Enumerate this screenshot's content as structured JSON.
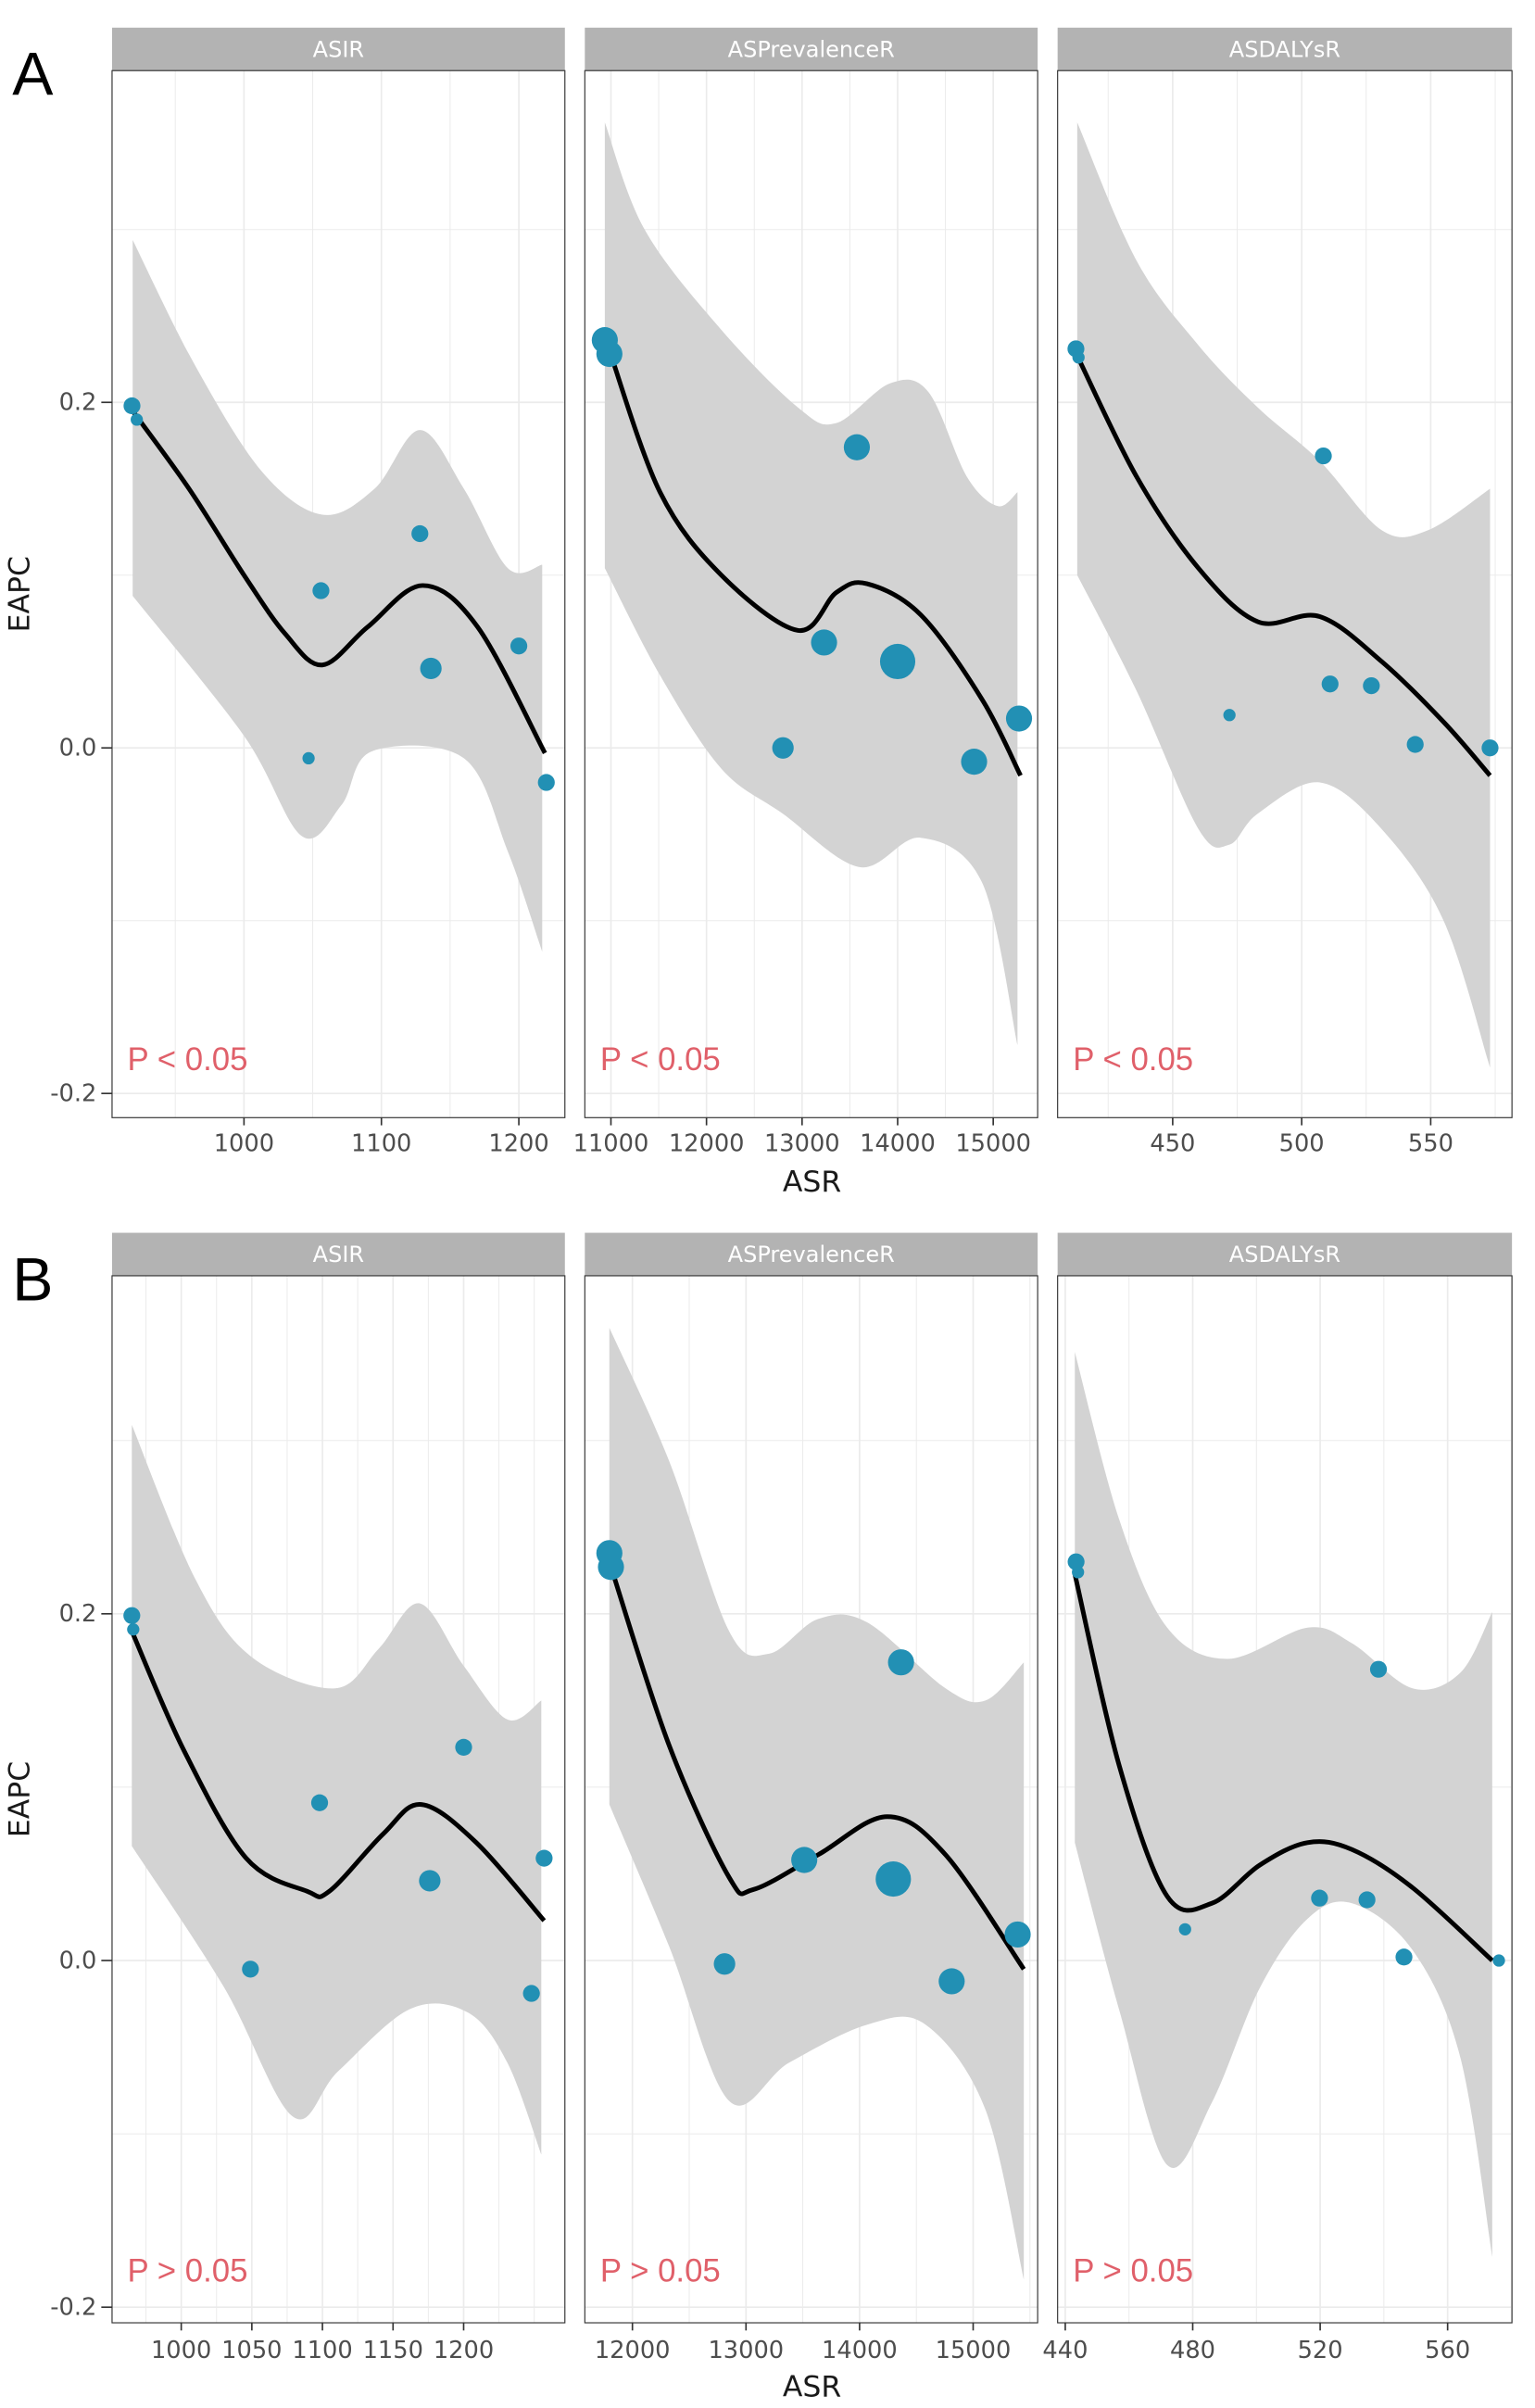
{
  "chart_data": [
    {
      "type": "scatter",
      "panel_label": "A",
      "xlabel": "ASR",
      "ylabel": "EAPC",
      "ylim": [
        -0.214,
        0.392
      ],
      "yticks": [
        {
          "v": 0.2,
          "label": "0.2"
        },
        {
          "v": 0.0,
          "label": "0.0"
        },
        {
          "v": -0.2,
          "label": "-0.2"
        }
      ],
      "grid": true,
      "facets": [
        {
          "strip": "ASIR",
          "p_label": "P < 0.05",
          "xlim": [
            904,
            1233.5
          ],
          "xticks": [
            {
              "v": 1000,
              "label": "1000"
            },
            {
              "v": 1100,
              "label": "1100"
            },
            {
              "v": 1200,
              "label": "1200"
            }
          ],
          "points": [
            [
              918.5,
              0.198,
              2
            ],
            [
              922,
              0.19,
              1
            ],
            [
              1056,
              0.091,
              2
            ],
            [
              1047,
              -0.006,
              1
            ],
            [
              1128,
              0.124,
              2
            ],
            [
              1136,
              0.046,
              3
            ],
            [
              1200,
              0.059,
              2
            ],
            [
              1220,
              -0.02,
              2
            ]
          ],
          "fit": [
            [
              919,
              0.195
            ],
            [
              960,
              0.15
            ],
            [
              1000,
              0.1
            ],
            [
              1030,
              0.066
            ],
            [
              1057,
              0.048
            ],
            [
              1090,
              0.07
            ],
            [
              1130,
              0.094
            ],
            [
              1170,
              0.07
            ],
            [
              1219,
              -0.003
            ]
          ],
          "upper": [
            [
              919,
              0.294
            ],
            [
              964,
              0.222
            ],
            [
              1013,
              0.16
            ],
            [
              1057,
              0.135
            ],
            [
              1095,
              0.15
            ],
            [
              1128,
              0.184
            ],
            [
              1160,
              0.15
            ],
            [
              1192,
              0.104
            ],
            [
              1217,
              0.106
            ]
          ],
          "lower": [
            [
              919,
              0.088
            ],
            [
              1000,
              0.007
            ],
            [
              1042,
              -0.051
            ],
            [
              1071,
              -0.033
            ],
            [
              1093,
              -0.002
            ],
            [
              1160,
              -0.006
            ],
            [
              1192,
              -0.06
            ],
            [
              1217,
              -0.118
            ]
          ]
        },
        {
          "strip": "ASPrevalenceR",
          "p_label": "P < 0.05",
          "xlim": [
            10727,
            15465
          ],
          "xticks": [
            {
              "v": 11000,
              "label": "11000"
            },
            {
              "v": 12000,
              "label": "12000"
            },
            {
              "v": 13000,
              "label": "13000"
            },
            {
              "v": 14000,
              "label": "14000"
            },
            {
              "v": 15000,
              "label": "15000"
            }
          ],
          "points": [
            [
              10936,
              0.236,
              4
            ],
            [
              10984,
              0.228,
              4
            ],
            [
              13573,
              0.174,
              4
            ],
            [
              13230,
              0.061,
              4
            ],
            [
              14000,
              0.05,
              6
            ],
            [
              12800,
              0.0,
              3
            ],
            [
              14800,
              -0.008,
              4
            ],
            [
              15270,
              0.017,
              4
            ]
          ],
          "fit": [
            [
              10984,
              0.23
            ],
            [
              11514,
              0.148
            ],
            [
              12155,
              0.1
            ],
            [
              12958,
              0.068
            ],
            [
              13359,
              0.09
            ],
            [
              13680,
              0.095
            ],
            [
              14242,
              0.077
            ],
            [
              14884,
              0.028
            ],
            [
              15286,
              -0.016
            ]
          ],
          "upper": [
            [
              10936,
              0.362
            ],
            [
              11353,
              0.3
            ],
            [
              12155,
              0.242
            ],
            [
              12958,
              0.197
            ],
            [
              13359,
              0.188
            ],
            [
              13921,
              0.211
            ],
            [
              14322,
              0.206
            ],
            [
              14724,
              0.157
            ],
            [
              15045,
              0.14
            ],
            [
              15254,
              0.148
            ]
          ],
          "lower": [
            [
              10936,
              0.104
            ],
            [
              11514,
              0.042
            ],
            [
              12155,
              -0.012
            ],
            [
              12797,
              -0.038
            ],
            [
              13600,
              -0.069
            ],
            [
              14242,
              -0.052
            ],
            [
              14884,
              -0.078
            ],
            [
              15254,
              -0.172
            ]
          ]
        },
        {
          "strip": "ASDALYsR",
          "p_label": "P < 0.05",
          "xlim": [
            405.4,
            581.5
          ],
          "xticks": [
            {
              "v": 450,
              "label": "450"
            },
            {
              "v": 500,
              "label": "500"
            },
            {
              "v": 550,
              "label": "550"
            }
          ],
          "points": [
            [
              412.5,
              0.231,
              2
            ],
            [
              413.5,
              0.226,
              1
            ],
            [
              508.4,
              0.169,
              2
            ],
            [
              472,
              0.019,
              1
            ],
            [
              511,
              0.037,
              2
            ],
            [
              527,
              0.036,
              2
            ],
            [
              544,
              0.002,
              2
            ],
            [
              573,
              0.0,
              2
            ]
          ],
          "fit": [
            [
              413,
              0.227
            ],
            [
              436,
              0.157
            ],
            [
              460,
              0.104
            ],
            [
              483,
              0.073
            ],
            [
              507,
              0.076
            ],
            [
              531,
              0.05
            ],
            [
              555,
              0.015
            ],
            [
              573,
              -0.016
            ]
          ],
          "upper": [
            [
              413,
              0.362
            ],
            [
              436,
              0.282
            ],
            [
              460,
              0.233
            ],
            [
              483,
              0.197
            ],
            [
              507,
              0.166
            ],
            [
              531,
              0.126
            ],
            [
              549,
              0.126
            ],
            [
              573,
              0.15
            ]
          ],
          "lower": [
            [
              413,
              0.1
            ],
            [
              436,
              0.033
            ],
            [
              460,
              -0.047
            ],
            [
              472,
              -0.056
            ],
            [
              483,
              -0.038
            ],
            [
              507,
              -0.02
            ],
            [
              531,
              -0.047
            ],
            [
              555,
              -0.1
            ],
            [
              573,
              -0.185
            ]
          ]
        }
      ]
    },
    {
      "type": "scatter",
      "panel_label": "B",
      "xlabel": "ASR",
      "ylabel": "EAPC",
      "ylim": [
        -0.209,
        0.395
      ],
      "yticks": [
        {
          "v": 0.2,
          "label": "0.2"
        },
        {
          "v": 0.0,
          "label": "0.0"
        },
        {
          "v": -0.2,
          "label": "-0.2"
        }
      ],
      "grid": true,
      "facets": [
        {
          "strip": "ASIR",
          "p_label": "P > 0.05",
          "xlim": [
            951,
            1271.7
          ],
          "xticks": [
            {
              "v": 1000,
              "label": "1000"
            },
            {
              "v": 1050,
              "label": "1050"
            },
            {
              "v": 1100,
              "label": "1100"
            },
            {
              "v": 1150,
              "label": "1150"
            },
            {
              "v": 1200,
              "label": "1200"
            }
          ],
          "points": [
            [
              965,
              0.199,
              2
            ],
            [
              966,
              0.191,
              1
            ],
            [
              1098,
              0.091,
              2
            ],
            [
              1049,
              -0.005,
              2
            ],
            [
              1200,
              0.123,
              2
            ],
            [
              1176,
              0.046,
              3
            ],
            [
              1257,
              0.059,
              2
            ],
            [
              1248,
              -0.019,
              2
            ]
          ],
          "fit": [
            [
              965,
              0.19
            ],
            [
              1002,
              0.121
            ],
            [
              1046,
              0.059
            ],
            [
              1089,
              0.04
            ],
            [
              1105,
              0.04
            ],
            [
              1143,
              0.073
            ],
            [
              1170,
              0.09
            ],
            [
              1209,
              0.068
            ],
            [
              1257,
              0.023
            ]
          ],
          "upper": [
            [
              965,
              0.309
            ],
            [
              1010,
              0.22
            ],
            [
              1050,
              0.175
            ],
            [
              1109,
              0.157
            ],
            [
              1140,
              0.18
            ],
            [
              1169,
              0.206
            ],
            [
              1200,
              0.17
            ],
            [
              1231,
              0.139
            ],
            [
              1255,
              0.15
            ]
          ],
          "lower": [
            [
              965,
              0.066
            ],
            [
              1030,
              -0.015
            ],
            [
              1079,
              -0.09
            ],
            [
              1111,
              -0.064
            ],
            [
              1162,
              -0.028
            ],
            [
              1203,
              -0.03
            ],
            [
              1231,
              -0.059
            ],
            [
              1255,
              -0.112
            ]
          ]
        },
        {
          "strip": "ASPrevalenceR",
          "p_label": "P > 0.05",
          "xlim": [
            11581,
            15568
          ],
          "xticks": [
            {
              "v": 12000,
              "label": "12000"
            },
            {
              "v": 13000,
              "label": "13000"
            },
            {
              "v": 14000,
              "label": "14000"
            },
            {
              "v": 15000,
              "label": "15000"
            }
          ],
          "points": [
            [
              11797,
              0.235,
              4
            ],
            [
              11811,
              0.227,
              4
            ],
            [
              14365,
              0.172,
              4
            ],
            [
              13513,
              0.058,
              4
            ],
            [
              14297,
              0.047,
              6
            ],
            [
              12811,
              -0.002,
              3
            ],
            [
              14811,
              -0.012,
              4
            ],
            [
              15392,
              0.015,
              4
            ]
          ],
          "fit": [
            [
              11811,
              0.227
            ],
            [
              12324,
              0.124
            ],
            [
              12851,
              0.048
            ],
            [
              13067,
              0.041
            ],
            [
              13635,
              0.061
            ],
            [
              14243,
              0.083
            ],
            [
              14757,
              0.061
            ],
            [
              15446,
              -0.005
            ]
          ],
          "upper": [
            [
              11797,
              0.365
            ],
            [
              12324,
              0.288
            ],
            [
              12851,
              0.19
            ],
            [
              13203,
              0.177
            ],
            [
              13635,
              0.197
            ],
            [
              14068,
              0.195
            ],
            [
              14757,
              0.157
            ],
            [
              15108,
              0.15
            ],
            [
              15446,
              0.172
            ]
          ],
          "lower": [
            [
              11797,
              0.09
            ],
            [
              12324,
              0.008
            ],
            [
              12851,
              -0.081
            ],
            [
              13378,
              -0.059
            ],
            [
              14068,
              -0.037
            ],
            [
              14581,
              -0.037
            ],
            [
              15108,
              -0.086
            ],
            [
              15446,
              -0.184
            ]
          ]
        },
        {
          "strip": "ASDALYsR",
          "p_label": "P > 0.05",
          "xlim": [
            437.6,
            580.2
          ],
          "xticks": [
            {
              "v": 440,
              "label": "440"
            },
            {
              "v": 480,
              "label": "480"
            },
            {
              "v": 520,
              "label": "520"
            },
            {
              "v": 560,
              "label": "560"
            }
          ],
          "points": [
            [
              443.4,
              0.23,
              2
            ],
            [
              444,
              0.224,
              1
            ],
            [
              538.3,
              0.168,
              2
            ],
            [
              477.6,
              0.018,
              1
            ],
            [
              519.8,
              0.036,
              2
            ],
            [
              534.7,
              0.035,
              2
            ],
            [
              546.3,
              0.002,
              2
            ],
            [
              576.1,
              0.0,
              1
            ]
          ],
          "fit": [
            [
              443,
              0.223
            ],
            [
              457,
              0.112
            ],
            [
              472,
              0.037
            ],
            [
              486,
              0.033
            ],
            [
              501,
              0.055
            ],
            [
              516,
              0.068
            ],
            [
              530,
              0.064
            ],
            [
              549,
              0.042
            ],
            [
              574,
              0.0
            ]
          ],
          "upper": [
            [
              443,
              0.351
            ],
            [
              457,
              0.254
            ],
            [
              472,
              0.192
            ],
            [
              491,
              0.174
            ],
            [
              516,
              0.192
            ],
            [
              530,
              0.183
            ],
            [
              549,
              0.157
            ],
            [
              564,
              0.166
            ],
            [
              574,
              0.201
            ]
          ],
          "lower": [
            [
              443,
              0.068
            ],
            [
              457,
              -0.029
            ],
            [
              472,
              -0.118
            ],
            [
              486,
              -0.082
            ],
            [
              501,
              -0.016
            ],
            [
              516,
              0.024
            ],
            [
              530,
              0.033
            ],
            [
              549,
              0.006
            ],
            [
              564,
              -0.056
            ],
            [
              574,
              -0.171
            ]
          ]
        }
      ]
    }
  ],
  "colors": {
    "point": "#2290b4",
    "band": "#d3d3d3",
    "fit": "#000000",
    "strip": "#b3b3b3",
    "p_label": "#e0606a",
    "grid": "#ebebeb"
  }
}
